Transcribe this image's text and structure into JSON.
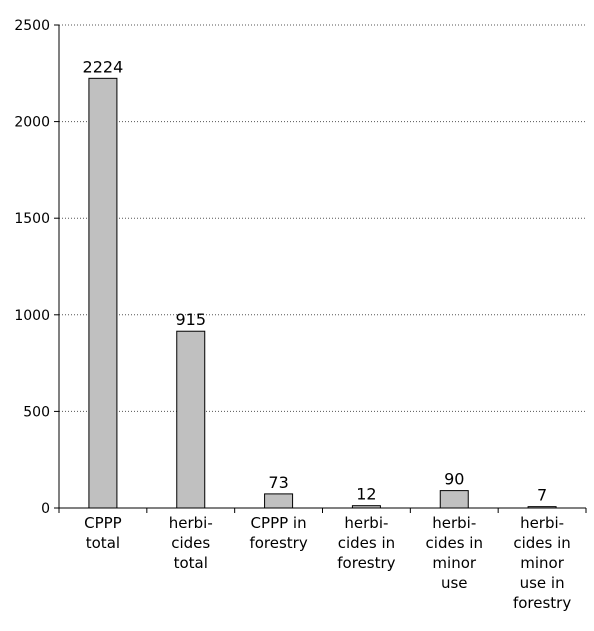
{
  "chart_data": {
    "type": "bar",
    "categories": [
      [
        "CPPP",
        "total"
      ],
      [
        "herbi-",
        "cides",
        "total"
      ],
      [
        "CPPP in",
        "forestry"
      ],
      [
        "herbi-",
        "cides in",
        "forestry"
      ],
      [
        "herbi-",
        "cides in",
        "minor",
        "use"
      ],
      [
        "herbi-",
        "cides in",
        "minor",
        "use in",
        "forestry"
      ]
    ],
    "values": [
      2224,
      915,
      73,
      12,
      90,
      7
    ],
    "data_labels": [
      "2224",
      "915",
      "73",
      "12",
      "90",
      "7"
    ],
    "ylim": [
      0,
      2500
    ],
    "yticks": [
      0,
      500,
      1000,
      1500,
      2000,
      2500
    ],
    "ytick_labels": [
      "0",
      "500",
      "1000",
      "1500",
      "2000",
      "2500"
    ],
    "grid": "horizontal dotted",
    "legend": "none",
    "colors": {
      "bar_fill": "#c0c0c0",
      "bar_stroke": "#000000",
      "grid": "#555555",
      "axis": "#000000"
    }
  }
}
